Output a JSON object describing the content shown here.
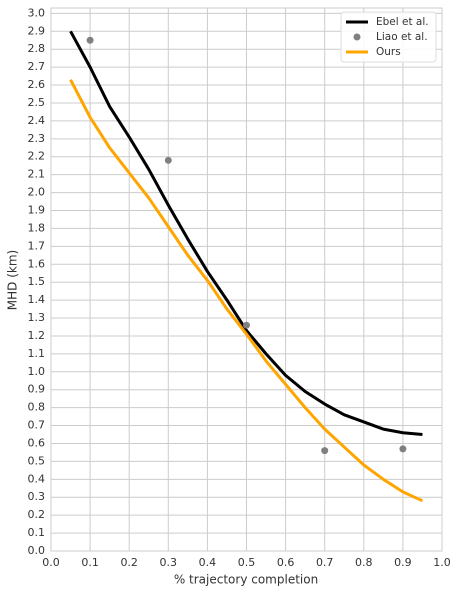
{
  "chart_data": {
    "type": "line",
    "xlabel": "% trajectory completion",
    "ylabel": "MHD (km)",
    "xlim": [
      0,
      1.0
    ],
    "ylim": [
      0,
      3.03
    ],
    "xticks": [
      {
        "value": 0,
        "label": "0.0"
      },
      0.1,
      0.2,
      0.3,
      0.4,
      0.5,
      0.6,
      0.7,
      0.8,
      0.9,
      {
        "value": 1,
        "label": "1.0"
      }
    ],
    "yticks": [
      {
        "value": 0,
        "label": "0.0"
      },
      0.1,
      0.2,
      0.3,
      0.4,
      0.5,
      0.6,
      0.7,
      0.8,
      0.9,
      {
        "value": 1,
        "label": "1.0"
      },
      1.1,
      1.2,
      1.3,
      1.4,
      1.5,
      1.6,
      1.7,
      1.8,
      1.9,
      {
        "value": 2,
        "label": "2.0"
      },
      2.1,
      2.2,
      2.3,
      2.4,
      2.5,
      2.6,
      2.7,
      2.8,
      2.9,
      {
        "value": 3,
        "label": "3.0"
      }
    ],
    "grid": true,
    "legend": "upper right",
    "series": [
      {
        "name": "Ebel et al.",
        "color": "#000000",
        "mode": "line",
        "x": [
          0.05,
          0.1,
          0.15,
          0.2,
          0.25,
          0.3,
          0.35,
          0.4,
          0.45,
          0.5,
          0.55,
          0.6,
          0.65,
          0.7,
          0.75,
          0.8,
          0.85,
          0.9,
          0.95
        ],
        "values": [
          2.9,
          2.7,
          2.48,
          2.31,
          2.13,
          1.93,
          1.74,
          1.56,
          1.4,
          1.23,
          1.1,
          0.98,
          0.89,
          0.82,
          0.76,
          0.72,
          0.68,
          0.66,
          0.65
        ]
      },
      {
        "name": "Liao et al.",
        "color": "#808080",
        "mode": "scatter",
        "x": [
          0.1,
          0.3,
          0.5,
          0.7,
          0.9
        ],
        "values": [
          2.85,
          2.18,
          1.26,
          0.56,
          0.57
        ]
      },
      {
        "name": "Ours",
        "color": "#ffa500",
        "mode": "line",
        "x": [
          0.05,
          0.1,
          0.15,
          0.2,
          0.25,
          0.3,
          0.35,
          0.4,
          0.45,
          0.5,
          0.55,
          0.6,
          0.65,
          0.7,
          0.75,
          0.8,
          0.85,
          0.9,
          0.95
        ],
        "values": [
          2.63,
          2.42,
          2.25,
          2.11,
          1.97,
          1.81,
          1.65,
          1.51,
          1.35,
          1.21,
          1.06,
          0.93,
          0.8,
          0.68,
          0.58,
          0.48,
          0.4,
          0.33,
          0.28
        ]
      }
    ]
  }
}
